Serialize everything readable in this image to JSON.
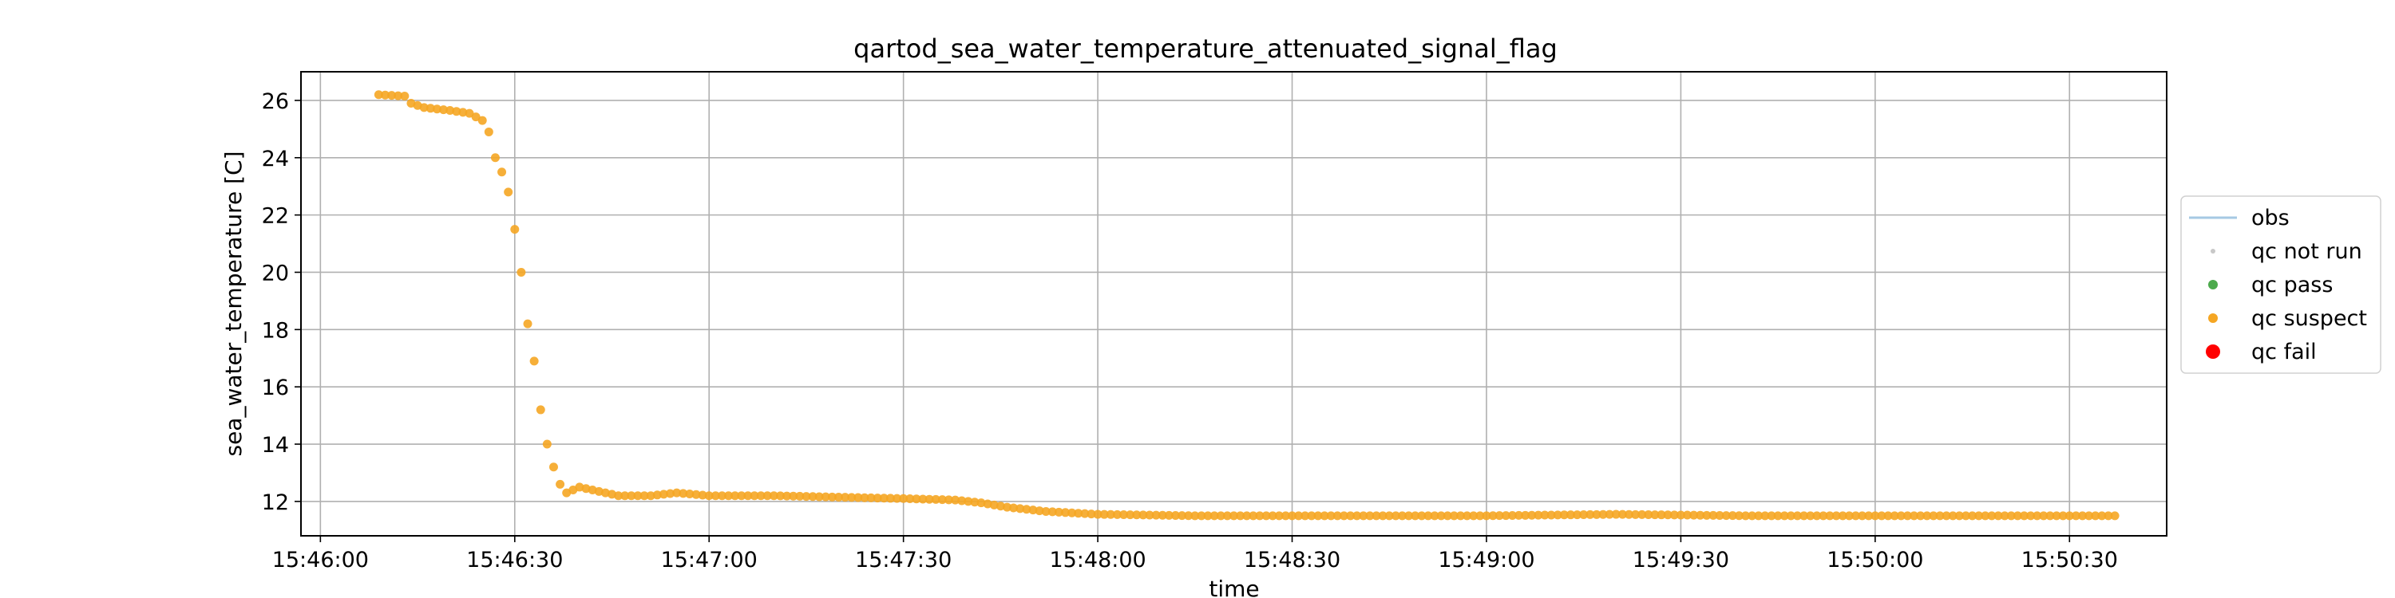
{
  "chart_data": {
    "type": "scatter",
    "title": "qartod_sea_water_temperature_attenuated_signal_flag",
    "xlabel": "time",
    "ylabel": "sea_water_temperature [C]",
    "x_tick_labels": [
      "15:46:00",
      "15:46:30",
      "15:47:00",
      "15:47:30",
      "15:48:00",
      "15:48:30",
      "15:49:00",
      "15:49:30",
      "15:50:00",
      "15:50:30"
    ],
    "y_ticks": [
      12,
      14,
      16,
      18,
      20,
      22,
      24,
      26
    ],
    "xlim": [
      "15:45:57",
      "15:50:45"
    ],
    "ylim": [
      10.8,
      27.0
    ],
    "grid": true,
    "legend_position": "right, outside plot",
    "legend": [
      {
        "label": "obs",
        "marker": "line",
        "color": "#a6c8e3"
      },
      {
        "label": "qc not run",
        "marker": "dot-small",
        "color": "#c8c8c8"
      },
      {
        "label": "qc pass",
        "marker": "dot",
        "color": "#4caa4c"
      },
      {
        "label": "qc suspect",
        "marker": "dot",
        "color": "#f5a623"
      },
      {
        "label": "qc fail",
        "marker": "dot-large",
        "color": "#ff0000"
      }
    ],
    "series": [
      {
        "name": "qc suspect",
        "color": "#f5a623",
        "points": [
          [
            "15:46:09",
            26.2
          ],
          [
            "15:46:13",
            26.15
          ],
          [
            "15:46:14",
            25.9
          ],
          [
            "15:46:16",
            25.75
          ],
          [
            "15:46:20",
            25.65
          ],
          [
            "15:46:23",
            25.55
          ],
          [
            "15:46:25",
            25.3
          ],
          [
            "15:46:26",
            24.9
          ],
          [
            "15:46:27",
            24.0
          ],
          [
            "15:46:28",
            23.5
          ],
          [
            "15:46:29",
            22.8
          ],
          [
            "15:46:30",
            21.5
          ],
          [
            "15:46:31",
            20.0
          ],
          [
            "15:46:32",
            18.2
          ],
          [
            "15:46:33",
            16.9
          ],
          [
            "15:46:34",
            15.2
          ],
          [
            "15:46:35",
            14.0
          ],
          [
            "15:46:36",
            13.2
          ],
          [
            "15:46:37",
            12.6
          ],
          [
            "15:46:38",
            12.3
          ],
          [
            "15:46:40",
            12.5
          ],
          [
            "15:46:43",
            12.35
          ],
          [
            "15:46:46",
            12.2
          ],
          [
            "15:46:51",
            12.2
          ],
          [
            "15:46:55",
            12.3
          ],
          [
            "15:47:00",
            12.2
          ],
          [
            "15:47:10",
            12.2
          ],
          [
            "15:47:20",
            12.15
          ],
          [
            "15:47:30",
            12.1
          ],
          [
            "15:47:38",
            12.05
          ],
          [
            "15:47:42",
            11.95
          ],
          [
            "15:47:46",
            11.8
          ],
          [
            "15:47:52",
            11.65
          ],
          [
            "15:48:00",
            11.55
          ],
          [
            "15:48:15",
            11.5
          ],
          [
            "15:49:00",
            11.5
          ],
          [
            "15:49:20",
            11.55
          ],
          [
            "15:49:40",
            11.5
          ],
          [
            "15:50:00",
            11.5
          ],
          [
            "15:50:37",
            11.5
          ]
        ]
      }
    ]
  }
}
